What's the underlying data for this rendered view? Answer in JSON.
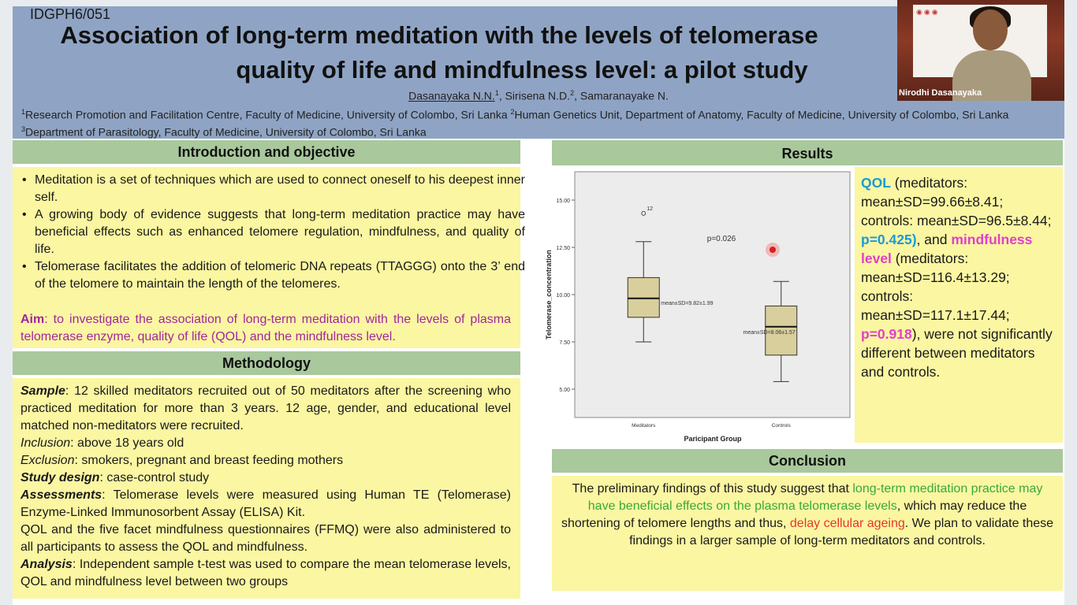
{
  "poster": {
    "id": "IDGPH6/051",
    "title_line1": "Association of long-term meditation with the levels of telomerase",
    "title_line2": "quality of life and mindfulness level: a pilot study",
    "authors": {
      "a1": "Dasanayaka N.N.",
      "a1_sup": "1",
      "a2": ", Sirisena N.D.",
      "a2_sup": "2",
      "a3": ", Samaranayake N."
    },
    "affiliations": {
      "s1": "1",
      "t1": "Research Promotion and Facilitation Centre, Faculty of Medicine, University of Colombo, Sri Lanka ",
      "s2": "2",
      "t2": "Human Genetics Unit, Department of Anatomy, Faculty of Medicine, University of Colombo, Sri Lanka ",
      "s3": "3",
      "t3": "Department of Parasitology, Faculty of Medicine, University of Colombo, Sri Lanka"
    }
  },
  "webcam": {
    "name": "Nirodhi Dasanayaka"
  },
  "intro": {
    "heading": "Introduction and objective",
    "bullets": [
      "Meditation is a set of techniques which are used to connect oneself to his deepest inner self.",
      "A growing body of evidence suggests that long-term meditation practice may have beneficial effects such as enhanced telomere regulation, mindfulness, and quality of life.",
      "Telomerase facilitates the addition of telomeric DNA repeats (TTAGGG) onto the 3’ end of the telomere to maintain the length of the telomeres."
    ],
    "aim_label": "Aim",
    "aim_text": ": to investigate the association of long-term meditation with the levels of plasma telomerase enzyme, quality of life (QOL) and the mindfulness level."
  },
  "methodology": {
    "heading": "Methodology",
    "sample_label": "Sample",
    "sample_text": ": 12 skilled meditators recruited out of 50 meditators after the screening who practiced meditation for more than 3 years. 12 age, gender, and educational level matched non-meditators were recruited.",
    "inclusion_label": "Inclusion",
    "inclusion_text": ": above 18 years old",
    "exclusion_label": "Exclusion",
    "exclusion_text": ": smokers, pregnant and breast feeding mothers",
    "design_label": "Study design",
    "design_text": ": case-control study",
    "assess_label": "Assessments",
    "assess_text": ": Telomerase levels were measured using Human TE (Telomerase) Enzyme-Linked Immunosorbent Assay (ELISA) Kit.",
    "qol_text": "QOL and the five facet mindfulness questionnaires (FFMQ) were also administered to all participants to assess the QOL and mindfulness.",
    "analysis_label": "Analysis",
    "analysis_text": ": Independent sample t-test was used to compare the mean telomerase levels, QOL and mindfulness level between two groups"
  },
  "results": {
    "heading": "Results",
    "qol_label": "QOL",
    "qol_1": " (meditators: mean±SD=99.66±8.41; controls: mean±SD=96.5±8.44; ",
    "qol_p": "p=0.425)",
    "qol_2": ", and ",
    "mind_label": "mindfulness level",
    "mind_1": " (meditators: mean±SD=116.4±13.29; controls: mean±SD=117.1±17.44; ",
    "mind_p": "p=0.918",
    "mind_2": "), were not significantly different between meditators and controls."
  },
  "conclusion": {
    "heading": "Conclusion",
    "t1": "The preliminary findings of this study suggest that ",
    "green": "long-term meditation practice may have beneficial effects on the plasma telomerase levels",
    "t2": ", which may reduce the shortening of telomere lengths and thus, ",
    "red": "delay cellular ageing",
    "t3": ". We plan to validate these findings in a larger sample of long-term meditators and controls."
  },
  "chart_data": {
    "type": "boxplot",
    "xlabel": "Paricipant Group",
    "ylabel": "Telomerase_concentration",
    "ylim": [
      3.5,
      16.5
    ],
    "yticks": [
      5.0,
      7.5,
      10.0,
      12.5,
      15.0
    ],
    "ytick_labels": [
      "5.00",
      "7.50",
      "10.00",
      "12.50",
      "15.00"
    ],
    "categories": [
      "Meditators",
      "Controls"
    ],
    "boxes": [
      {
        "name": "Meditators",
        "min": 7.5,
        "q1": 8.8,
        "median": 9.8,
        "q3": 10.9,
        "max": 12.8,
        "annotation": "mean±SD=9.82±1.99",
        "outlier": 14.3,
        "outlier_label": "12"
      },
      {
        "name": "Controls",
        "min": 5.4,
        "q1": 6.8,
        "median": 8.3,
        "q3": 9.4,
        "max": 10.7,
        "annotation": "mean±SD=8.06±1.57"
      }
    ],
    "pvalue_label": "p=0.026",
    "box_color": "#d8cf9c",
    "grid": false
  }
}
